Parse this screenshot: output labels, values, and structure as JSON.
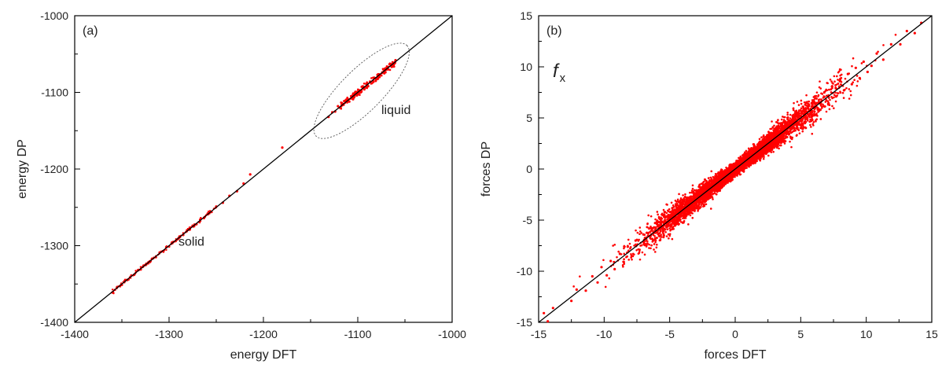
{
  "chart_data": [
    {
      "type": "scatter",
      "panel_label": "(a)",
      "xlabel": "energy DFT",
      "ylabel": "energy DP",
      "xlim": [
        -1400,
        -1000
      ],
      "ylim": [
        -1400,
        -1000
      ],
      "x_ticks": [
        -1400,
        -1300,
        -1200,
        -1100,
        -1000
      ],
      "y_ticks": [
        -1400,
        -1300,
        -1200,
        -1100,
        -1000
      ],
      "x_tick_labels": [
        "-1400",
        "-1300",
        "-1200",
        "-1100",
        "-1000"
      ],
      "y_tick_labels": [
        "-1400",
        "-1300",
        "-1200",
        "-1100",
        "-1000"
      ],
      "reference_line": "y = x",
      "point_color": "#ff0000",
      "line_color": "#000000",
      "grid": false,
      "annotations": [
        {
          "text": "liquid",
          "x": -1075,
          "y": -1128
        },
        {
          "text": "solid",
          "x": -1290,
          "y": -1300
        }
      ],
      "highlight_ellipse": {
        "center_x": -1096,
        "center_y": -1098,
        "x_radius": 68,
        "y_radius": 22,
        "angle_deg": 45
      },
      "series": [
        {
          "x": [
            -1360,
            -1355,
            -1350,
            -1347,
            -1343,
            -1340,
            -1337,
            -1333,
            -1330,
            -1327,
            -1322,
            -1318,
            -1314,
            -1310,
            -1306,
            -1303,
            -1300,
            -1297,
            -1293,
            -1289,
            -1285,
            -1281,
            -1278,
            -1275,
            -1271,
            -1267,
            -1263,
            -1259,
            -1255,
            -1250,
            -1243,
            -1236,
            -1228,
            -1221,
            -1214,
            -1180,
            -1131,
            -1127,
            -1124,
            -1121,
            -1119,
            -1117,
            -1115,
            -1113,
            -1111,
            -1109,
            -1107,
            -1105,
            -1103,
            -1101,
            -1099,
            -1097,
            -1095,
            -1093,
            -1091,
            -1089,
            -1087,
            -1085,
            -1083,
            -1081,
            -1079,
            -1077,
            -1074,
            -1071,
            -1068,
            -1065,
            -1062,
            -1060
          ],
          "y": [
            -1361,
            -1354,
            -1351,
            -1346,
            -1344,
            -1339,
            -1338,
            -1332,
            -1331,
            -1326,
            -1323,
            -1317,
            -1315,
            -1309,
            -1307,
            -1302,
            -1301,
            -1296,
            -1294,
            -1288,
            -1286,
            -1280,
            -1279,
            -1274,
            -1272,
            -1266,
            -1264,
            -1258,
            -1256,
            -1249,
            -1244,
            -1235,
            -1229,
            -1219,
            -1207,
            -1172,
            -1132,
            -1126,
            -1125,
            -1118,
            -1120,
            -1114,
            -1116,
            -1111,
            -1108,
            -1112,
            -1105,
            -1109,
            -1101,
            -1104,
            -1097,
            -1100,
            -1093,
            -1096,
            -1089,
            -1092,
            -1086,
            -1088,
            -1081,
            -1085,
            -1077,
            -1080,
            -1074,
            -1069,
            -1070,
            -1063,
            -1064,
            -1058
          ]
        }
      ]
    },
    {
      "type": "scatter",
      "panel_label": "(b)",
      "xlabel": "forces DFT",
      "ylabel": "forces DP",
      "xlim": [
        -15,
        15
      ],
      "ylim": [
        -15,
        15
      ],
      "x_ticks": [
        -15,
        -10,
        -5,
        0,
        5,
        10,
        15
      ],
      "y_ticks": [
        -15,
        -10,
        -5,
        0,
        5,
        10,
        15
      ],
      "x_tick_labels": [
        "-15",
        "-10",
        "-5",
        "0",
        "5",
        "10",
        "15"
      ],
      "y_tick_labels": [
        "-15",
        "-10",
        "-5",
        "0",
        "5",
        "10",
        "15"
      ],
      "reference_line": "y = x",
      "point_color": "#ff0000",
      "line_color": "#000000",
      "grid": false,
      "component_label": {
        "main": "f",
        "subscript": "x"
      },
      "series": [
        {
          "x": [
            -14.6,
            -14.3,
            -13.9,
            -12.5,
            -12.1,
            -11.4,
            -10.9,
            -10.5,
            -10.2,
            -9.8,
            -9.5,
            -9.2,
            -8.8,
            -8.5,
            -8.2,
            -7.9,
            -7.6,
            -7.3,
            -7.0,
            -6.7,
            -6.4,
            -6.1,
            -5.8,
            -5.5,
            -5.2,
            -4.9,
            -4.6,
            -4.3,
            -4.0,
            -3.7,
            -3.4,
            -3.1,
            -2.8,
            -2.5,
            -2.2,
            -1.9,
            -1.6,
            -1.3,
            -1.0,
            -0.7,
            -0.4,
            -0.1,
            0.2,
            0.5,
            0.8,
            1.1,
            1.4,
            1.7,
            2.0,
            2.3,
            2.6,
            2.9,
            3.2,
            3.5,
            3.8,
            4.1,
            4.4,
            4.7,
            5.0,
            5.3,
            5.6,
            5.9,
            6.2,
            6.5,
            6.8,
            7.1,
            7.4,
            7.7,
            8.0,
            8.3,
            8.6,
            8.9,
            9.2,
            9.5,
            9.8,
            10.1,
            10.4,
            10.8,
            11.3,
            11.9,
            12.6,
            13.1,
            13.7,
            14.2
          ],
          "y": [
            -14.1,
            -14.9,
            -13.6,
            -12.9,
            -11.8,
            -11.9,
            -10.5,
            -11.1,
            -9.6,
            -10.4,
            -9.0,
            -9.8,
            -8.3,
            -9.1,
            -7.6,
            -8.5,
            -7.0,
            -7.9,
            -6.4,
            -7.3,
            -5.8,
            -6.8,
            -5.2,
            -6.1,
            -4.7,
            -5.6,
            -4.0,
            -5.0,
            -3.4,
            -4.4,
            -2.8,
            -3.8,
            -2.1,
            -3.2,
            -1.6,
            -2.5,
            -1.0,
            -2.0,
            -0.4,
            -1.3,
            0.2,
            -0.7,
            0.8,
            -0.1,
            1.4,
            0.4,
            2.0,
            1.0,
            2.6,
            1.6,
            3.3,
            2.2,
            3.8,
            2.8,
            4.5,
            3.4,
            5.0,
            4.0,
            5.7,
            4.6,
            6.3,
            5.2,
            6.9,
            5.8,
            7.5,
            6.4,
            8.1,
            7.1,
            8.7,
            7.7,
            9.3,
            8.3,
            9.9,
            8.9,
            10.5,
            9.5,
            10.1,
            11.3,
            10.7,
            12.2,
            12.2,
            13.5,
            13.3,
            14.3
          ]
        }
      ]
    }
  ]
}
